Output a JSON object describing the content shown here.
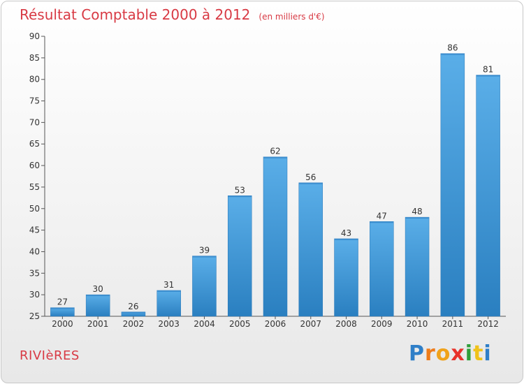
{
  "title": "Résultat Comptable 2000 à 2012",
  "subtitle": "(en milliers d'€)",
  "commune": "RIVIèRES",
  "logo": {
    "text": "Proxiti",
    "letters": [
      "P",
      "r",
      "o",
      "x",
      "i",
      "t",
      "i"
    ]
  },
  "colors": {
    "title": "#d83a44",
    "bar_top": "#5aaee8",
    "bar_bottom": "#2a7fc0",
    "logo": [
      "#2f7fc8",
      "#ee7c1a",
      "#f0a21a",
      "#e8322b",
      "#2f9f3a",
      "#f0c21a",
      "#2f7fc8"
    ]
  },
  "chart_data": {
    "type": "bar",
    "categories": [
      "2000",
      "2001",
      "2002",
      "2003",
      "2004",
      "2005",
      "2006",
      "2007",
      "2008",
      "2009",
      "2010",
      "2011",
      "2012"
    ],
    "values": [
      27,
      30,
      26,
      31,
      39,
      53,
      62,
      56,
      43,
      47,
      48,
      86,
      81
    ],
    "value_labels": [
      "27",
      "30",
      "26",
      "31",
      "39",
      "53",
      "62",
      "56",
      "43",
      "47",
      "48",
      "86",
      "81"
    ],
    "yticks": [
      "25",
      "30",
      "35",
      "40",
      "45",
      "50",
      "55",
      "60",
      "65",
      "70",
      "75",
      "80",
      "85",
      "90"
    ],
    "ylim": [
      25,
      90
    ],
    "grid": false
  }
}
